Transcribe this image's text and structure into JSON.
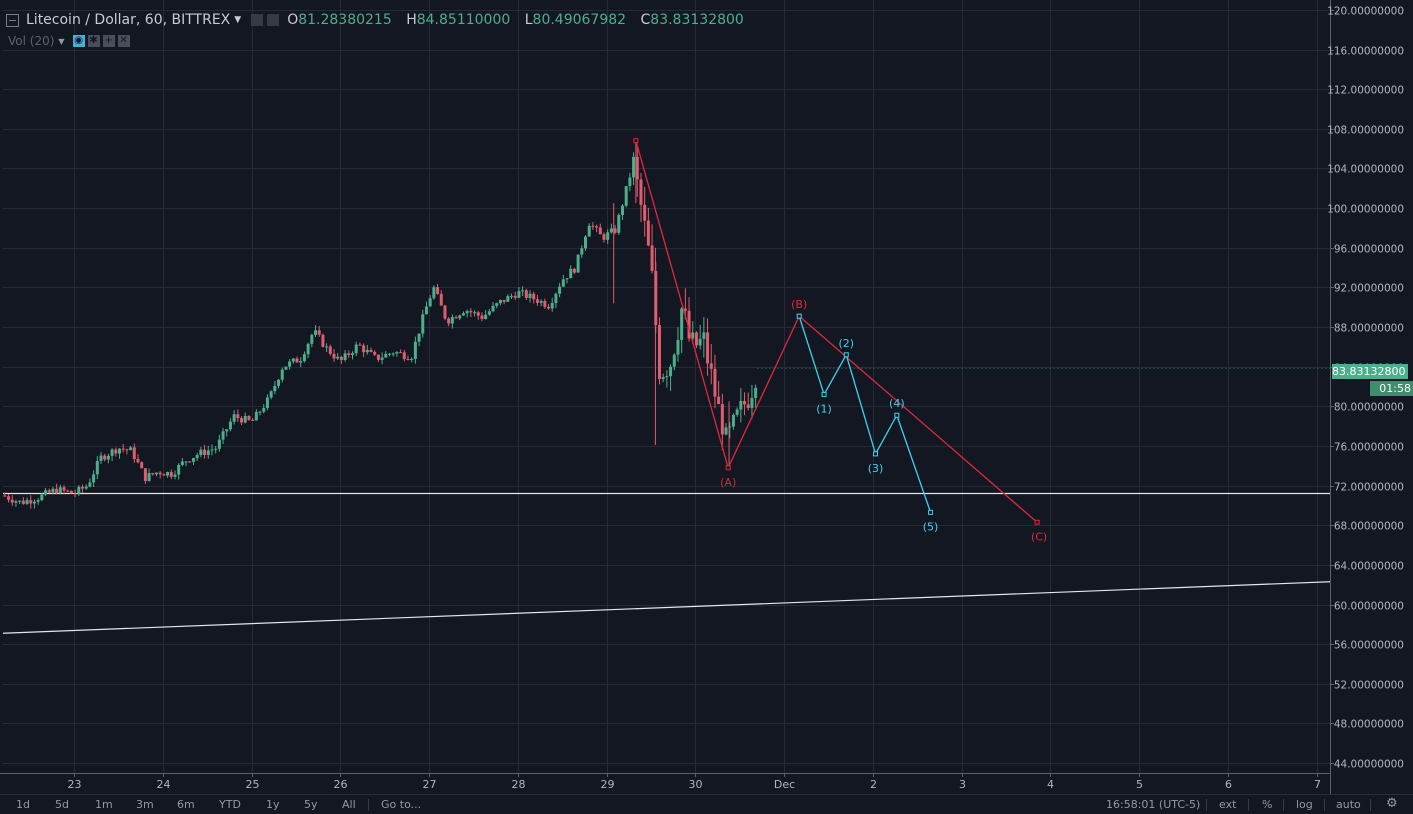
{
  "header": {
    "symbol": "Litecoin / Dollar, 60, BITTREX",
    "ohlc": [
      {
        "k": "O",
        "v": "81.28380215"
      },
      {
        "k": "H",
        "v": "84.85110000"
      },
      {
        "k": "L",
        "v": "80.49067982"
      },
      {
        "k": "C",
        "v": "83.83132800"
      }
    ]
  },
  "volume_label": "Vol (20)",
  "current_price_label": "83.83132800",
  "countdown": "01:58",
  "colors": {
    "up": "#4caf8c",
    "down": "#e05d6f",
    "wave_abc": "#e0283c",
    "wave_impulse": "#3fd0ee",
    "trend_line": "#e6e6e6"
  },
  "timeframes": [
    "1d",
    "5d",
    "1m",
    "3m",
    "6m",
    "YTD",
    "1y",
    "5y",
    "All",
    "Go to..."
  ],
  "status_bar": {
    "time": "16:58:01 (UTC-5)",
    "ext": "ext",
    "percent": "%",
    "log": "log",
    "auto": "auto"
  },
  "chart_data": {
    "type": "candlestick",
    "title": "Litecoin / Dollar, 60, BITTREX",
    "y_ticks": [
      "120.00000000",
      "116.00000000",
      "112.00000000",
      "108.00000000",
      "104.00000000",
      "100.00000000",
      "96.00000000",
      "92.00000000",
      "88.00000000",
      "84.00000000",
      "80.00000000",
      "76.00000000",
      "72.00000000",
      "68.00000000",
      "64.00000000",
      "60.00000000",
      "56.00000000",
      "52.00000000",
      "48.00000000",
      "44.00000000"
    ],
    "x_ticks": [
      {
        "label": "23",
        "day": 23
      },
      {
        "label": "24",
        "day": 24
      },
      {
        "label": "25",
        "day": 25
      },
      {
        "label": "26",
        "day": 26
      },
      {
        "label": "27",
        "day": 27
      },
      {
        "label": "28",
        "day": 28
      },
      {
        "label": "29",
        "day": 29
      },
      {
        "label": "30",
        "day": 30
      },
      {
        "label": "Dec",
        "day": 31
      },
      {
        "label": "2",
        "day": 32
      },
      {
        "label": "3",
        "day": 33
      },
      {
        "label": "4",
        "day": 34
      },
      {
        "label": "5",
        "day": 35
      },
      {
        "label": "6",
        "day": 36
      },
      {
        "label": "7",
        "day": 37
      }
    ],
    "ylim": [
      43,
      121
    ],
    "xlim": [
      22.2,
      37.15
    ],
    "price_path": [
      [
        22.2,
        71.0
      ],
      [
        22.4,
        70.3
      ],
      [
        22.6,
        70.8
      ],
      [
        22.8,
        71.6
      ],
      [
        23.0,
        71.2
      ],
      [
        23.15,
        72.0
      ],
      [
        23.3,
        74.8
      ],
      [
        23.5,
        75.8
      ],
      [
        23.65,
        75.5
      ],
      [
        23.8,
        72.8
      ],
      [
        23.95,
        73.4
      ],
      [
        24.1,
        73.2
      ],
      [
        24.25,
        74.5
      ],
      [
        24.4,
        75.2
      ],
      [
        24.6,
        75.8
      ],
      [
        24.8,
        79.0
      ],
      [
        25.0,
        78.4
      ],
      [
        25.2,
        80.8
      ],
      [
        25.35,
        84.0
      ],
      [
        25.55,
        84.8
      ],
      [
        25.7,
        87.6
      ],
      [
        25.85,
        85.8
      ],
      [
        26.0,
        84.5
      ],
      [
        26.2,
        86.2
      ],
      [
        26.4,
        84.8
      ],
      [
        26.6,
        85.5
      ],
      [
        26.8,
        85.0
      ],
      [
        26.95,
        89.5
      ],
      [
        27.05,
        92.0
      ],
      [
        27.2,
        88.6
      ],
      [
        27.4,
        89.8
      ],
      [
        27.6,
        89.0
      ],
      [
        27.8,
        90.5
      ],
      [
        28.0,
        91.5
      ],
      [
        28.2,
        90.8
      ],
      [
        28.35,
        90.2
      ],
      [
        28.5,
        92.8
      ],
      [
        28.65,
        94.0
      ],
      [
        28.8,
        98.6
      ],
      [
        28.95,
        97.0
      ],
      [
        29.1,
        97.8
      ],
      [
        29.3,
        104.5
      ],
      [
        29.4,
        99.5
      ],
      [
        29.5,
        94.0
      ],
      [
        29.6,
        83.5
      ],
      [
        29.72,
        84.5
      ],
      [
        29.85,
        90.0
      ],
      [
        29.95,
        86.0
      ],
      [
        30.1,
        86.5
      ],
      [
        30.2,
        82.0
      ],
      [
        30.35,
        76.5
      ],
      [
        30.5,
        79.5
      ],
      [
        30.62,
        81.2
      ],
      [
        30.7,
        83.8
      ]
    ],
    "wicks": [
      {
        "x": 29.33,
        "high": 106.8,
        "low": 100.5
      },
      {
        "x": 29.55,
        "high": 96.0,
        "low": 76.1
      },
      {
        "x": 29.08,
        "high": 100.5,
        "low": 90.4
      },
      {
        "x": 30.38,
        "high": 80.5,
        "low": 74.0
      }
    ],
    "wave_abc": [
      {
        "x": 29.33,
        "y": 106.8,
        "label": ""
      },
      {
        "x": 30.37,
        "y": 73.8,
        "label": "(A)"
      },
      {
        "x": 31.17,
        "y": 89.1,
        "label": "(B)"
      },
      {
        "x": 33.85,
        "y": 68.3,
        "label": "(C)"
      }
    ],
    "wave_impulse": [
      {
        "x": 31.17,
        "y": 89.1,
        "label": ""
      },
      {
        "x": 31.45,
        "y": 81.2,
        "label": "(1)"
      },
      {
        "x": 31.7,
        "y": 85.2,
        "label": "(2)"
      },
      {
        "x": 32.03,
        "y": 75.2,
        "label": "(3)"
      },
      {
        "x": 32.27,
        "y": 79.1,
        "label": "(4)"
      },
      {
        "x": 32.65,
        "y": 69.3,
        "label": "(5)"
      }
    ],
    "horizontal_line": {
      "y": 71.2
    },
    "trend_line": {
      "x1": 22.2,
      "y1": 57.1,
      "x2": 37.15,
      "y2": 62.3
    },
    "grid": true,
    "legend": "top-left"
  }
}
